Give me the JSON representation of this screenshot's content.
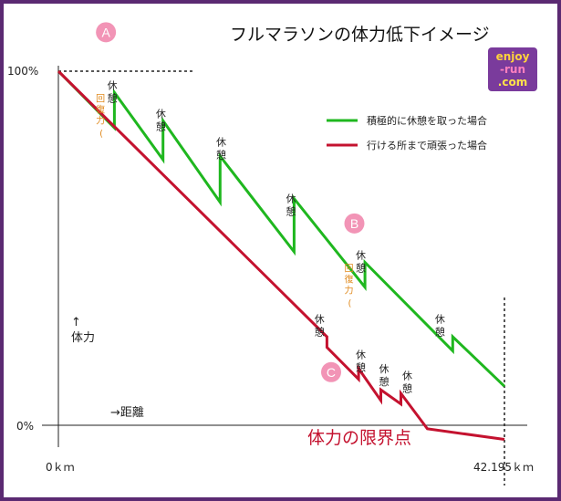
{
  "chart_data": {
    "type": "line",
    "title": "フルマラソンの体力低下イメージ",
    "yticks": [
      "100%",
      "0%"
    ],
    "xticks": [
      "0ｋｍ",
      "42.195ｋｍ"
    ],
    "ylim": [
      0,
      100
    ],
    "xlim": [
      0,
      42.195
    ],
    "legend_position": "top-right",
    "series": [
      {
        "name": "積極的に休憩を取った場合",
        "color": "#1fb71f",
        "points": [
          [
            0,
            100
          ],
          [
            5.3,
            84
          ],
          [
            5.3,
            94
          ],
          [
            9.9,
            75
          ],
          [
            9.9,
            86
          ],
          [
            15.3,
            63
          ],
          [
            15.3,
            76
          ],
          [
            22.3,
            49
          ],
          [
            22.3,
            64
          ],
          [
            29.0,
            39
          ],
          [
            29.0,
            46
          ],
          [
            37.3,
            21
          ],
          [
            37.3,
            25
          ],
          [
            42.195,
            11
          ]
        ]
      },
      {
        "name": "行ける所まで頑張った場合",
        "color": "#c4122f",
        "points": [
          [
            0,
            100
          ],
          [
            25.4,
            25
          ],
          [
            25.4,
            22
          ],
          [
            28.4,
            13
          ],
          [
            28.4,
            16
          ],
          [
            30.5,
            7
          ],
          [
            30.5,
            10
          ],
          [
            32.4,
            6
          ],
          [
            32.4,
            9
          ],
          [
            34.9,
            -1
          ],
          [
            42.195,
            -4
          ]
        ]
      }
    ],
    "annotations": {
      "rest_label": "休憩",
      "recovery_label": "回復力",
      "rests": [
        {
          "x": 5.1,
          "y": 95,
          "recovery": true
        },
        {
          "x": 9.7,
          "y": 87,
          "recovery": false
        },
        {
          "x": 15.4,
          "y": 79,
          "recovery": false
        },
        {
          "x": 22.0,
          "y": 63,
          "recovery": false
        },
        {
          "x": 28.6,
          "y": 47,
          "recovery": true
        },
        {
          "x": 36.1,
          "y": 29,
          "recovery": false
        },
        {
          "x": 24.7,
          "y": 29,
          "recovery": false
        },
        {
          "x": 28.6,
          "y": 19,
          "recovery": false
        },
        {
          "x": 30.8,
          "y": 15,
          "recovery": false
        },
        {
          "x": 33.0,
          "y": 13,
          "recovery": false
        }
      ],
      "markers": [
        {
          "label": "A",
          "x": 4.5,
          "y": 111
        },
        {
          "label": "B",
          "x": 28.0,
          "y": 57
        },
        {
          "label": "C",
          "x": 25.8,
          "y": 15
        }
      ]
    },
    "y_note_arrow": "↑",
    "y_note": "体力",
    "x_note": "→距離",
    "limit_label": "体力の限界点"
  },
  "logo": {
    "line1": "enjoy",
    "line2": "-run",
    "line3": ".com"
  }
}
